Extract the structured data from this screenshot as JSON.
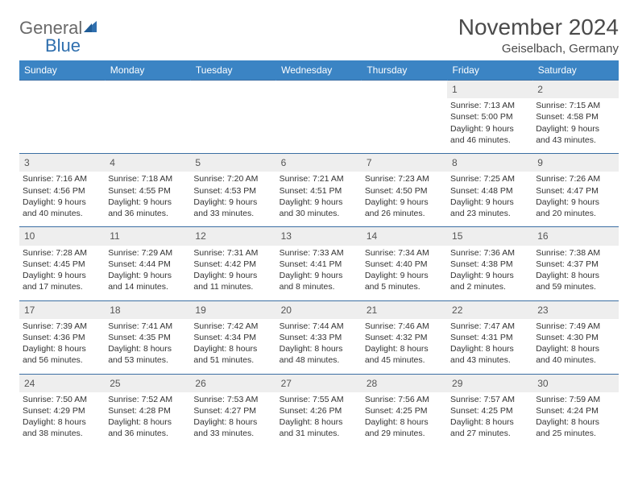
{
  "logo": {
    "word1": "General",
    "word2": "Blue"
  },
  "title": "November 2024",
  "location": "Geiselbach, Germany",
  "colors": {
    "header_bg": "#3b84c4",
    "row_divider": "#3b6ea3",
    "daynum_bg": "#eeeeee",
    "text": "#333333",
    "logo_gray": "#6a6a6a",
    "logo_blue": "#2f6fae"
  },
  "font": {
    "title_size": 28,
    "subtitle_size": 15,
    "dow_size": 12,
    "daynum_size": 12,
    "body_size": 10.5
  },
  "days_of_week": [
    "Sunday",
    "Monday",
    "Tuesday",
    "Wednesday",
    "Thursday",
    "Friday",
    "Saturday"
  ],
  "weeks": [
    [
      {
        "n": "",
        "sunrise": "",
        "sunset": "",
        "daylight": ""
      },
      {
        "n": "",
        "sunrise": "",
        "sunset": "",
        "daylight": ""
      },
      {
        "n": "",
        "sunrise": "",
        "sunset": "",
        "daylight": ""
      },
      {
        "n": "",
        "sunrise": "",
        "sunset": "",
        "daylight": ""
      },
      {
        "n": "",
        "sunrise": "",
        "sunset": "",
        "daylight": ""
      },
      {
        "n": "1",
        "sunrise": "Sunrise: 7:13 AM",
        "sunset": "Sunset: 5:00 PM",
        "daylight": "Daylight: 9 hours and 46 minutes."
      },
      {
        "n": "2",
        "sunrise": "Sunrise: 7:15 AM",
        "sunset": "Sunset: 4:58 PM",
        "daylight": "Daylight: 9 hours and 43 minutes."
      }
    ],
    [
      {
        "n": "3",
        "sunrise": "Sunrise: 7:16 AM",
        "sunset": "Sunset: 4:56 PM",
        "daylight": "Daylight: 9 hours and 40 minutes."
      },
      {
        "n": "4",
        "sunrise": "Sunrise: 7:18 AM",
        "sunset": "Sunset: 4:55 PM",
        "daylight": "Daylight: 9 hours and 36 minutes."
      },
      {
        "n": "5",
        "sunrise": "Sunrise: 7:20 AM",
        "sunset": "Sunset: 4:53 PM",
        "daylight": "Daylight: 9 hours and 33 minutes."
      },
      {
        "n": "6",
        "sunrise": "Sunrise: 7:21 AM",
        "sunset": "Sunset: 4:51 PM",
        "daylight": "Daylight: 9 hours and 30 minutes."
      },
      {
        "n": "7",
        "sunrise": "Sunrise: 7:23 AM",
        "sunset": "Sunset: 4:50 PM",
        "daylight": "Daylight: 9 hours and 26 minutes."
      },
      {
        "n": "8",
        "sunrise": "Sunrise: 7:25 AM",
        "sunset": "Sunset: 4:48 PM",
        "daylight": "Daylight: 9 hours and 23 minutes."
      },
      {
        "n": "9",
        "sunrise": "Sunrise: 7:26 AM",
        "sunset": "Sunset: 4:47 PM",
        "daylight": "Daylight: 9 hours and 20 minutes."
      }
    ],
    [
      {
        "n": "10",
        "sunrise": "Sunrise: 7:28 AM",
        "sunset": "Sunset: 4:45 PM",
        "daylight": "Daylight: 9 hours and 17 minutes."
      },
      {
        "n": "11",
        "sunrise": "Sunrise: 7:29 AM",
        "sunset": "Sunset: 4:44 PM",
        "daylight": "Daylight: 9 hours and 14 minutes."
      },
      {
        "n": "12",
        "sunrise": "Sunrise: 7:31 AM",
        "sunset": "Sunset: 4:42 PM",
        "daylight": "Daylight: 9 hours and 11 minutes."
      },
      {
        "n": "13",
        "sunrise": "Sunrise: 7:33 AM",
        "sunset": "Sunset: 4:41 PM",
        "daylight": "Daylight: 9 hours and 8 minutes."
      },
      {
        "n": "14",
        "sunrise": "Sunrise: 7:34 AM",
        "sunset": "Sunset: 4:40 PM",
        "daylight": "Daylight: 9 hours and 5 minutes."
      },
      {
        "n": "15",
        "sunrise": "Sunrise: 7:36 AM",
        "sunset": "Sunset: 4:38 PM",
        "daylight": "Daylight: 9 hours and 2 minutes."
      },
      {
        "n": "16",
        "sunrise": "Sunrise: 7:38 AM",
        "sunset": "Sunset: 4:37 PM",
        "daylight": "Daylight: 8 hours and 59 minutes."
      }
    ],
    [
      {
        "n": "17",
        "sunrise": "Sunrise: 7:39 AM",
        "sunset": "Sunset: 4:36 PM",
        "daylight": "Daylight: 8 hours and 56 minutes."
      },
      {
        "n": "18",
        "sunrise": "Sunrise: 7:41 AM",
        "sunset": "Sunset: 4:35 PM",
        "daylight": "Daylight: 8 hours and 53 minutes."
      },
      {
        "n": "19",
        "sunrise": "Sunrise: 7:42 AM",
        "sunset": "Sunset: 4:34 PM",
        "daylight": "Daylight: 8 hours and 51 minutes."
      },
      {
        "n": "20",
        "sunrise": "Sunrise: 7:44 AM",
        "sunset": "Sunset: 4:33 PM",
        "daylight": "Daylight: 8 hours and 48 minutes."
      },
      {
        "n": "21",
        "sunrise": "Sunrise: 7:46 AM",
        "sunset": "Sunset: 4:32 PM",
        "daylight": "Daylight: 8 hours and 45 minutes."
      },
      {
        "n": "22",
        "sunrise": "Sunrise: 7:47 AM",
        "sunset": "Sunset: 4:31 PM",
        "daylight": "Daylight: 8 hours and 43 minutes."
      },
      {
        "n": "23",
        "sunrise": "Sunrise: 7:49 AM",
        "sunset": "Sunset: 4:30 PM",
        "daylight": "Daylight: 8 hours and 40 minutes."
      }
    ],
    [
      {
        "n": "24",
        "sunrise": "Sunrise: 7:50 AM",
        "sunset": "Sunset: 4:29 PM",
        "daylight": "Daylight: 8 hours and 38 minutes."
      },
      {
        "n": "25",
        "sunrise": "Sunrise: 7:52 AM",
        "sunset": "Sunset: 4:28 PM",
        "daylight": "Daylight: 8 hours and 36 minutes."
      },
      {
        "n": "26",
        "sunrise": "Sunrise: 7:53 AM",
        "sunset": "Sunset: 4:27 PM",
        "daylight": "Daylight: 8 hours and 33 minutes."
      },
      {
        "n": "27",
        "sunrise": "Sunrise: 7:55 AM",
        "sunset": "Sunset: 4:26 PM",
        "daylight": "Daylight: 8 hours and 31 minutes."
      },
      {
        "n": "28",
        "sunrise": "Sunrise: 7:56 AM",
        "sunset": "Sunset: 4:25 PM",
        "daylight": "Daylight: 8 hours and 29 minutes."
      },
      {
        "n": "29",
        "sunrise": "Sunrise: 7:57 AM",
        "sunset": "Sunset: 4:25 PM",
        "daylight": "Daylight: 8 hours and 27 minutes."
      },
      {
        "n": "30",
        "sunrise": "Sunrise: 7:59 AM",
        "sunset": "Sunset: 4:24 PM",
        "daylight": "Daylight: 8 hours and 25 minutes."
      }
    ]
  ]
}
